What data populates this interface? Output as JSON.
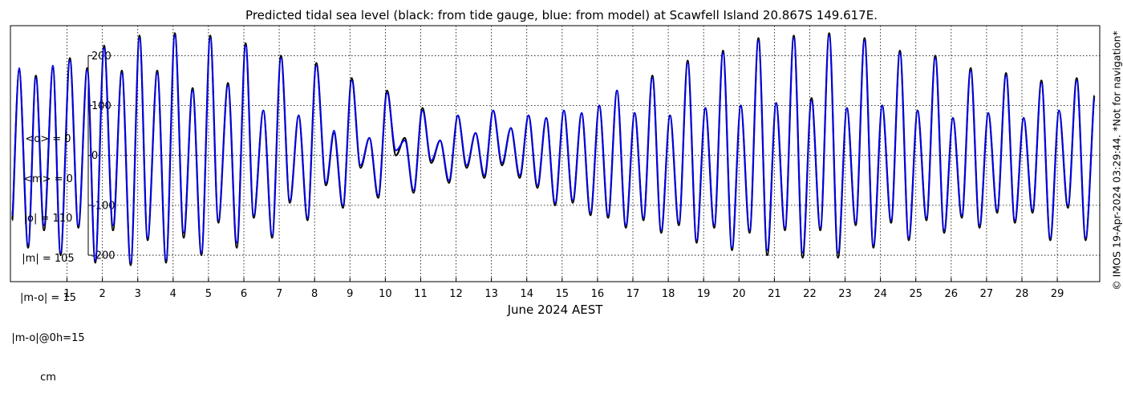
{
  "chart_data": {
    "type": "line",
    "title": "Predicted tidal sea level (black: from tide gauge, blue: from model) at Scawfell Island 20.867S 149.617E.",
    "xlabel": "June 2024 AEST",
    "ylabel": "",
    "xlim": [
      -0.6,
      30.2
    ],
    "ylim": [
      -253,
      260
    ],
    "x_ticks": [
      1,
      2,
      3,
      4,
      5,
      6,
      7,
      8,
      9,
      10,
      11,
      12,
      13,
      14,
      15,
      16,
      17,
      18,
      19,
      20,
      21,
      22,
      23,
      24,
      25,
      26,
      27,
      28,
      29
    ],
    "y_ticks": [
      -200,
      -100,
      0,
      100,
      200
    ],
    "grid": true,
    "series": [
      {
        "color": "#000000",
        "points": [
          [
            -0.55,
            -130
          ],
          [
            -0.35,
            170
          ],
          [
            -0.1,
            -185
          ],
          [
            0.12,
            160
          ],
          [
            0.35,
            -150
          ],
          [
            0.6,
            175
          ],
          [
            0.82,
            -200
          ],
          [
            1.08,
            195
          ],
          [
            1.32,
            -145
          ],
          [
            1.57,
            175
          ],
          [
            1.8,
            -215
          ],
          [
            2.05,
            220
          ],
          [
            2.3,
            -150
          ],
          [
            2.55,
            170
          ],
          [
            2.8,
            -220
          ],
          [
            3.05,
            240
          ],
          [
            3.28,
            -170
          ],
          [
            3.55,
            170
          ],
          [
            3.8,
            -215
          ],
          [
            4.05,
            245
          ],
          [
            4.3,
            -165
          ],
          [
            4.55,
            135
          ],
          [
            4.8,
            -200
          ],
          [
            5.05,
            240
          ],
          [
            5.28,
            -135
          ],
          [
            5.55,
            145
          ],
          [
            5.8,
            -185
          ],
          [
            6.05,
            225
          ],
          [
            6.28,
            -125
          ],
          [
            6.55,
            90
          ],
          [
            6.8,
            -165
          ],
          [
            7.05,
            200
          ],
          [
            7.3,
            -95
          ],
          [
            7.55,
            80
          ],
          [
            7.8,
            -130
          ],
          [
            8.05,
            185
          ],
          [
            8.32,
            -60
          ],
          [
            8.55,
            45
          ],
          [
            8.8,
            -105
          ],
          [
            9.05,
            155
          ],
          [
            9.3,
            -25
          ],
          [
            9.55,
            35
          ],
          [
            9.8,
            -85
          ],
          [
            10.05,
            130
          ],
          [
            10.3,
            0
          ],
          [
            10.55,
            35
          ],
          [
            10.8,
            -75
          ],
          [
            11.05,
            95
          ],
          [
            11.3,
            -15
          ],
          [
            11.55,
            30
          ],
          [
            11.8,
            -55
          ],
          [
            12.05,
            80
          ],
          [
            12.3,
            -25
          ],
          [
            12.55,
            45
          ],
          [
            12.8,
            -45
          ],
          [
            13.05,
            90
          ],
          [
            13.3,
            -20
          ],
          [
            13.55,
            55
          ],
          [
            13.8,
            -45
          ],
          [
            14.05,
            80
          ],
          [
            14.3,
            -65
          ],
          [
            14.55,
            75
          ],
          [
            14.8,
            -100
          ],
          [
            15.05,
            90
          ],
          [
            15.3,
            -95
          ],
          [
            15.55,
            85
          ],
          [
            15.8,
            -120
          ],
          [
            16.05,
            100
          ],
          [
            16.3,
            -125
          ],
          [
            16.55,
            130
          ],
          [
            16.8,
            -145
          ],
          [
            17.05,
            85
          ],
          [
            17.3,
            -130
          ],
          [
            17.55,
            160
          ],
          [
            17.8,
            -155
          ],
          [
            18.05,
            80
          ],
          [
            18.3,
            -140
          ],
          [
            18.55,
            190
          ],
          [
            18.8,
            -175
          ],
          [
            19.05,
            95
          ],
          [
            19.3,
            -145
          ],
          [
            19.55,
            210
          ],
          [
            19.8,
            -190
          ],
          [
            20.05,
            100
          ],
          [
            20.3,
            -155
          ],
          [
            20.55,
            235
          ],
          [
            20.8,
            -200
          ],
          [
            21.05,
            105
          ],
          [
            21.3,
            -150
          ],
          [
            21.55,
            240
          ],
          [
            21.8,
            -205
          ],
          [
            22.05,
            115
          ],
          [
            22.3,
            -150
          ],
          [
            22.55,
            245
          ],
          [
            22.8,
            -205
          ],
          [
            23.05,
            95
          ],
          [
            23.3,
            -140
          ],
          [
            23.55,
            235
          ],
          [
            23.8,
            -185
          ],
          [
            24.05,
            100
          ],
          [
            24.3,
            -135
          ],
          [
            24.55,
            210
          ],
          [
            24.8,
            -170
          ],
          [
            25.05,
            90
          ],
          [
            25.3,
            -130
          ],
          [
            25.55,
            200
          ],
          [
            25.8,
            -155
          ],
          [
            26.05,
            75
          ],
          [
            26.3,
            -125
          ],
          [
            26.55,
            175
          ],
          [
            26.8,
            -145
          ],
          [
            27.05,
            85
          ],
          [
            27.3,
            -115
          ],
          [
            27.55,
            165
          ],
          [
            27.8,
            -135
          ],
          [
            28.05,
            75
          ],
          [
            28.3,
            -115
          ],
          [
            28.55,
            150
          ],
          [
            28.8,
            -170
          ],
          [
            29.05,
            90
          ],
          [
            29.3,
            -105
          ],
          [
            29.55,
            155
          ],
          [
            29.8,
            -170
          ],
          [
            30.05,
            120
          ]
        ]
      },
      {
        "color": "#0000ff",
        "points": [
          [
            -0.55,
            -120
          ],
          [
            -0.35,
            175
          ],
          [
            -0.1,
            -180
          ],
          [
            0.12,
            155
          ],
          [
            0.35,
            -140
          ],
          [
            0.6,
            180
          ],
          [
            0.82,
            -195
          ],
          [
            1.08,
            190
          ],
          [
            1.32,
            -140
          ],
          [
            1.57,
            170
          ],
          [
            1.8,
            -210
          ],
          [
            2.05,
            215
          ],
          [
            2.3,
            -140
          ],
          [
            2.55,
            165
          ],
          [
            2.8,
            -215
          ],
          [
            3.05,
            235
          ],
          [
            3.28,
            -165
          ],
          [
            3.55,
            165
          ],
          [
            3.8,
            -210
          ],
          [
            4.05,
            240
          ],
          [
            4.3,
            -155
          ],
          [
            4.55,
            130
          ],
          [
            4.8,
            -195
          ],
          [
            5.05,
            235
          ],
          [
            5.28,
            -130
          ],
          [
            5.55,
            140
          ],
          [
            5.8,
            -175
          ],
          [
            6.05,
            220
          ],
          [
            6.28,
            -120
          ],
          [
            6.55,
            90
          ],
          [
            6.8,
            -160
          ],
          [
            7.05,
            195
          ],
          [
            7.3,
            -90
          ],
          [
            7.55,
            80
          ],
          [
            7.8,
            -125
          ],
          [
            8.05,
            180
          ],
          [
            8.32,
            -55
          ],
          [
            8.55,
            50
          ],
          [
            8.8,
            -100
          ],
          [
            9.05,
            150
          ],
          [
            9.3,
            -20
          ],
          [
            9.55,
            35
          ],
          [
            9.8,
            -80
          ],
          [
            10.05,
            125
          ],
          [
            10.3,
            10
          ],
          [
            10.55,
            30
          ],
          [
            10.8,
            -70
          ],
          [
            11.05,
            90
          ],
          [
            11.3,
            -10
          ],
          [
            11.55,
            30
          ],
          [
            11.8,
            -50
          ],
          [
            12.05,
            80
          ],
          [
            12.3,
            -20
          ],
          [
            12.55,
            45
          ],
          [
            12.8,
            -40
          ],
          [
            13.05,
            90
          ],
          [
            13.3,
            -15
          ],
          [
            13.55,
            55
          ],
          [
            13.8,
            -40
          ],
          [
            14.05,
            80
          ],
          [
            14.3,
            -60
          ],
          [
            14.55,
            75
          ],
          [
            14.8,
            -95
          ],
          [
            15.05,
            90
          ],
          [
            15.3,
            -90
          ],
          [
            15.55,
            85
          ],
          [
            15.8,
            -115
          ],
          [
            16.05,
            100
          ],
          [
            16.3,
            -120
          ],
          [
            16.55,
            130
          ],
          [
            16.8,
            -140
          ],
          [
            17.05,
            85
          ],
          [
            17.3,
            -125
          ],
          [
            17.55,
            155
          ],
          [
            17.8,
            -150
          ],
          [
            18.05,
            80
          ],
          [
            18.3,
            -135
          ],
          [
            18.55,
            185
          ],
          [
            18.8,
            -170
          ],
          [
            19.05,
            95
          ],
          [
            19.3,
            -140
          ],
          [
            19.55,
            205
          ],
          [
            19.8,
            -185
          ],
          [
            20.05,
            100
          ],
          [
            20.3,
            -150
          ],
          [
            20.55,
            230
          ],
          [
            20.8,
            -190
          ],
          [
            21.05,
            105
          ],
          [
            21.3,
            -145
          ],
          [
            21.55,
            235
          ],
          [
            21.8,
            -195
          ],
          [
            22.05,
            110
          ],
          [
            22.3,
            -145
          ],
          [
            22.55,
            240
          ],
          [
            22.8,
            -195
          ],
          [
            23.05,
            95
          ],
          [
            23.3,
            -135
          ],
          [
            23.55,
            230
          ],
          [
            23.8,
            -180
          ],
          [
            24.05,
            100
          ],
          [
            24.3,
            -130
          ],
          [
            24.55,
            205
          ],
          [
            24.8,
            -165
          ],
          [
            25.05,
            90
          ],
          [
            25.3,
            -125
          ],
          [
            25.55,
            195
          ],
          [
            25.8,
            -150
          ],
          [
            26.05,
            75
          ],
          [
            26.3,
            -120
          ],
          [
            26.55,
            170
          ],
          [
            26.8,
            -140
          ],
          [
            27.05,
            85
          ],
          [
            27.3,
            -110
          ],
          [
            27.55,
            160
          ],
          [
            27.8,
            -130
          ],
          [
            28.05,
            75
          ],
          [
            28.3,
            -110
          ],
          [
            28.55,
            145
          ],
          [
            28.8,
            -165
          ],
          [
            29.05,
            90
          ],
          [
            29.3,
            -100
          ],
          [
            29.55,
            150
          ],
          [
            29.8,
            -165
          ],
          [
            30.05,
            115
          ]
        ]
      }
    ]
  },
  "stats": {
    "lines": [
      "<o> = 0",
      "<m> = 0",
      "|o| = 110",
      "|m| = 105",
      "|m-o| = 15",
      "|m-o|@0h=15",
      "cm"
    ]
  },
  "side_note": "© IMOS 19-Apr-2024 03:29:44. *Not for navigation*"
}
